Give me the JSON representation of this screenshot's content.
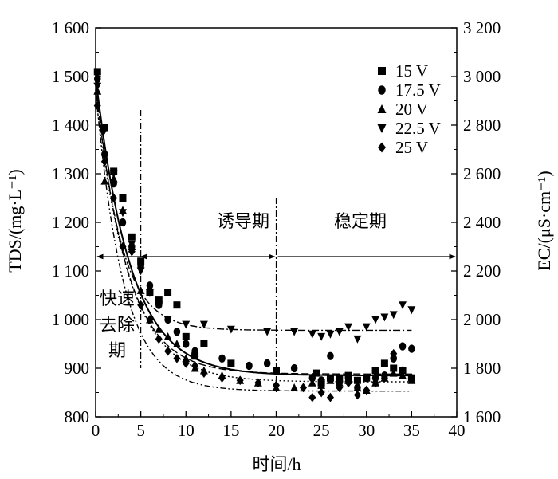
{
  "chart_data": {
    "type": "scatter",
    "xlabel": "时间/h",
    "ylabel": "TDS/(mg·L⁻¹)",
    "y2label": "EC/(μS·cm⁻¹)",
    "xlim": [
      0,
      40
    ],
    "ylim": [
      800,
      1600
    ],
    "y2lim": [
      1600,
      3200
    ],
    "x_ticks": [
      "0",
      "5",
      "10",
      "15",
      "20",
      "25",
      "30",
      "35",
      "40"
    ],
    "y_ticks": [
      "800",
      "900",
      "1 000",
      "1 100",
      "1 200",
      "1 300",
      "1 400",
      "1 500",
      "1 600"
    ],
    "y2_ticks": [
      "1 600",
      "1 800",
      "2 000",
      "2 200",
      "2 400",
      "2 600",
      "2 800",
      "3 000",
      "3 200"
    ],
    "x_tick_values": [
      0,
      5,
      10,
      15,
      20,
      25,
      30,
      35,
      40
    ],
    "y_tick_values": [
      800,
      900,
      1000,
      1100,
      1200,
      1300,
      1400,
      1500,
      1600
    ],
    "legend_position": "top-right",
    "phase_labels": {
      "fast": [
        "快速",
        "去除",
        "期"
      ],
      "induction": "诱导期",
      "stable": "稳定期"
    },
    "phase_boundaries": [
      5,
      20
    ],
    "series": [
      {
        "name": "15 V",
        "marker": "square",
        "x": [
          0.2,
          1,
          2,
          3,
          4,
          5,
          6,
          7,
          8,
          9,
          10,
          11,
          12,
          15,
          20,
          24.5,
          25,
          26,
          27,
          28,
          29,
          30,
          31,
          32,
          33,
          34,
          35
        ],
        "y": [
          1510,
          1395,
          1305,
          1250,
          1170,
          1120,
          1055,
          1040,
          1055,
          1030,
          965,
          925,
          950,
          910,
          895,
          890,
          870,
          880,
          880,
          885,
          875,
          880,
          895,
          910,
          900,
          895,
          880
        ]
      },
      {
        "name": "17.5 V",
        "marker": "circle",
        "x": [
          0.2,
          1,
          2,
          3,
          4,
          5,
          6,
          7,
          8,
          9,
          10,
          11,
          14,
          17,
          19,
          22,
          24,
          25,
          26,
          27,
          28,
          29,
          30,
          31,
          32,
          33,
          34,
          35
        ],
        "y": [
          1495,
          1340,
          1280,
          1200,
          1150,
          1110,
          1070,
          1030,
          1000,
          975,
          950,
          935,
          920,
          905,
          910,
          900,
          880,
          875,
          925,
          870,
          875,
          860,
          880,
          880,
          885,
          920,
          945,
          940
        ]
      },
      {
        "name": "20 V",
        "marker": "triangle-up",
        "x": [
          0.2,
          1,
          2,
          3,
          4,
          5,
          6,
          7,
          8,
          9,
          10,
          11,
          12,
          14,
          16,
          18,
          20,
          22,
          24,
          25,
          26,
          27,
          28,
          29,
          30,
          31,
          32,
          33,
          34,
          35
        ],
        "y": [
          1470,
          1285,
          1290,
          1225,
          1150,
          1060,
          1000,
          980,
          965,
          950,
          920,
          900,
          895,
          885,
          875,
          870,
          860,
          860,
          870,
          865,
          875,
          870,
          875,
          860,
          855,
          870,
          880,
          890,
          885,
          875
        ]
      },
      {
        "name": "22.5 V",
        "marker": "triangle-down",
        "x": [
          0.2,
          1,
          2,
          3,
          4,
          5,
          6,
          7,
          8,
          10,
          12,
          15,
          19,
          22,
          24,
          25,
          26,
          27,
          28,
          29,
          30,
          31,
          32,
          33,
          34,
          35
        ],
        "y": [
          1480,
          1390,
          1300,
          1220,
          1155,
          1100,
          1055,
          1030,
          1000,
          990,
          990,
          980,
          975,
          975,
          970,
          965,
          970,
          975,
          985,
          960,
          985,
          1000,
          1005,
          1010,
          1030,
          1020
        ]
      },
      {
        "name": "25 V",
        "marker": "diamond",
        "x": [
          0.2,
          1,
          2,
          3,
          4,
          5,
          6,
          7,
          8,
          9,
          10,
          11,
          12,
          14,
          16,
          18,
          20,
          23,
          24,
          25,
          26,
          27,
          28,
          29,
          30,
          31,
          32,
          33,
          34,
          35
        ],
        "y": [
          1440,
          1325,
          1250,
          1150,
          1140,
          1030,
          1000,
          960,
          935,
          920,
          910,
          905,
          890,
          880,
          875,
          870,
          865,
          860,
          840,
          850,
          840,
          860,
          870,
          845,
          855,
          870,
          880,
          930,
          895,
          880
        ]
      }
    ],
    "fit_curves": [
      {
        "series": "15 V",
        "style": "solid",
        "a": 615,
        "k": 0.26,
        "c": 885
      },
      {
        "series": "17.5 V",
        "style": "dash-long",
        "a": 595,
        "k": 0.29,
        "c": 888
      },
      {
        "series": "20 V",
        "style": "dash-dot-dot",
        "a": 620,
        "k": 0.33,
        "c": 853
      },
      {
        "series": "22.5 V",
        "style": "dash-dot",
        "a": 525,
        "k": 0.38,
        "c": 978
      },
      {
        "series": "25 V",
        "style": "dotted",
        "a": 590,
        "k": 0.27,
        "c": 872
      }
    ]
  }
}
